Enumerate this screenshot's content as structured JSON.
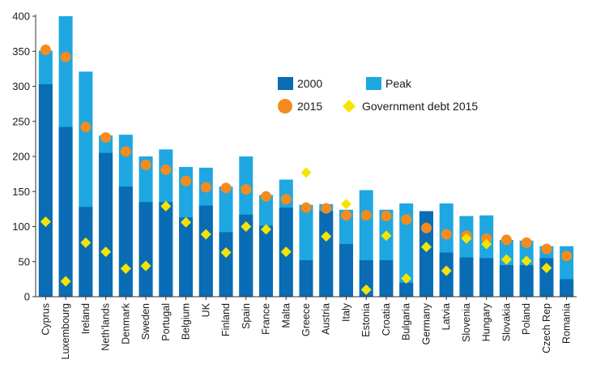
{
  "chart_data": {
    "type": "bar",
    "title": "",
    "xlabel": "",
    "ylabel": "",
    "ylim": [
      0,
      400
    ],
    "yticks": [
      0,
      50,
      100,
      150,
      200,
      250,
      300,
      350,
      400
    ],
    "grid": false,
    "categories": [
      "Cyprus",
      "Luxembourg",
      "Ireland",
      "Neth'lands",
      "Denmark",
      "Sweden",
      "Portugal",
      "Belgium",
      "UK",
      "Finland",
      "Spain",
      "France",
      "Malta",
      "Greece",
      "Austria",
      "Italy",
      "Estonia",
      "Croatia",
      "Bulgaria",
      "Germany",
      "Latvia",
      "Slovenia",
      "Hungary",
      "Slovakia",
      "Poland",
      "Czech Rep",
      "Romania"
    ],
    "series": [
      {
        "name": "2000",
        "kind": "bar",
        "color": "#0a6cb4",
        "values": [
          303,
          242,
          128,
          205,
          157,
          135,
          135,
          113,
          130,
          92,
          117,
          101,
          127,
          52,
          122,
          75,
          52,
          52,
          20,
          122,
          63,
          56,
          55,
          45,
          45,
          55,
          25
        ]
      },
      {
        "name": "Peak",
        "kind": "bar",
        "color": "#1ea7e1",
        "values": [
          351,
          400,
          321,
          230,
          231,
          200,
          210,
          185,
          184,
          157,
          200,
          145,
          167,
          131,
          132,
          124,
          152,
          124,
          133,
          122,
          133,
          115,
          116,
          81,
          80,
          72,
          72
        ]
      },
      {
        "name": "2015",
        "kind": "scatter",
        "marker": "circle",
        "color": "#f48b1f",
        "values": [
          352,
          342,
          242,
          227,
          207,
          188,
          181,
          165,
          156,
          155,
          153,
          143,
          139,
          127,
          126,
          116,
          116,
          115,
          110,
          98,
          89,
          87,
          83,
          81,
          77,
          68,
          58
        ]
      },
      {
        "name": "Government debt 2015",
        "kind": "scatter",
        "marker": "diamond",
        "color": "#f5e400",
        "values": [
          107,
          22,
          77,
          64,
          40,
          44,
          129,
          106,
          89,
          63,
          100,
          96,
          64,
          177,
          86,
          132,
          10,
          87,
          26,
          71,
          37,
          83,
          75,
          53,
          51,
          41,
          null
        ]
      }
    ],
    "legend": {
      "position": "center-right",
      "items": [
        {
          "label": "2000",
          "marker": "square",
          "color": "#0a6cb4"
        },
        {
          "label": "Peak",
          "marker": "square",
          "color": "#1ea7e1"
        },
        {
          "label": "2015",
          "marker": "circle",
          "color": "#f48b1f"
        },
        {
          "label": "Government debt 2015",
          "marker": "diamond",
          "color": "#f5e400"
        }
      ]
    }
  }
}
